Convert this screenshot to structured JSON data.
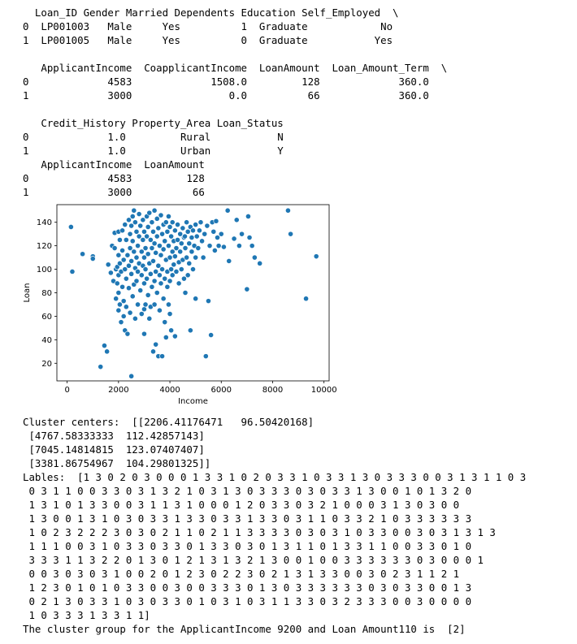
{
  "df_head": {
    "row1": "  Loan_ID Gender Married Dependents Education Self_Employed  \\",
    "row2": "0  LP001003   Male     Yes          1  Graduate            No",
    "row3": "1  LP001005   Male     Yes          0  Graduate           Yes",
    "row4": "",
    "row5": "   ApplicantIncome  CoapplicantIncome  LoanAmount  Loan_Amount_Term  \\",
    "row6": "0             4583             1508.0         128             360.0",
    "row7": "1             3000                0.0          66             360.0",
    "row8": "",
    "row9": "   Credit_History Property_Area Loan_Status",
    "row10": "0             1.0         Rural           N",
    "row11": "1             1.0         Urban           Y"
  },
  "subset_head": {
    "row1": "   ApplicantIncome  LoanAmount",
    "row2": "0             4583         128",
    "row3": "1             3000          66"
  },
  "chart_data": {
    "type": "scatter",
    "xlabel": "Income",
    "ylabel": "Loan",
    "xlim": [
      -400,
      10200
    ],
    "ylim": [
      5,
      155
    ],
    "xticks": [
      0,
      2000,
      4000,
      6000,
      8000,
      10000
    ],
    "yticks": [
      20,
      40,
      60,
      80,
      100,
      120,
      140
    ],
    "grid": false,
    "point_color": "#1f77b4",
    "points": [
      [
        150,
        136
      ],
      [
        200,
        98
      ],
      [
        600,
        113
      ],
      [
        1000,
        111
      ],
      [
        1000,
        109
      ],
      [
        1300,
        17
      ],
      [
        1450,
        35
      ],
      [
        1550,
        30
      ],
      [
        1600,
        104
      ],
      [
        1700,
        97
      ],
      [
        1750,
        120
      ],
      [
        1800,
        90
      ],
      [
        1850,
        131
      ],
      [
        1850,
        118
      ],
      [
        1900,
        100
      ],
      [
        1900,
        75
      ],
      [
        1950,
        102
      ],
      [
        1950,
        88
      ],
      [
        2000,
        132
      ],
      [
        2000,
        112
      ],
      [
        2000,
        95
      ],
      [
        2000,
        80
      ],
      [
        2000,
        65
      ],
      [
        2050,
        125
      ],
      [
        2050,
        105
      ],
      [
        2050,
        70
      ],
      [
        2100,
        98
      ],
      [
        2100,
        55
      ],
      [
        2150,
        133
      ],
      [
        2150,
        116
      ],
      [
        2150,
        85
      ],
      [
        2200,
        108
      ],
      [
        2200,
        73
      ],
      [
        2200,
        60
      ],
      [
        2250,
        138
      ],
      [
        2250,
        100
      ],
      [
        2250,
        48
      ],
      [
        2300,
        125
      ],
      [
        2300,
        92
      ],
      [
        2300,
        68
      ],
      [
        2350,
        112
      ],
      [
        2350,
        45
      ],
      [
        2400,
        142
      ],
      [
        2400,
        103
      ],
      [
        2400,
        84
      ],
      [
        2450,
        130
      ],
      [
        2450,
        118
      ],
      [
        2450,
        63
      ],
      [
        2500,
        9
      ],
      [
        2500,
        137
      ],
      [
        2500,
        107
      ],
      [
        2500,
        96
      ],
      [
        2550,
        145
      ],
      [
        2550,
        124
      ],
      [
        2550,
        77
      ],
      [
        2600,
        150
      ],
      [
        2600,
        115
      ],
      [
        2600,
        87
      ],
      [
        2650,
        140
      ],
      [
        2650,
        101
      ],
      [
        2650,
        58
      ],
      [
        2700,
        132
      ],
      [
        2700,
        110
      ],
      [
        2700,
        90
      ],
      [
        2750,
        120
      ],
      [
        2750,
        98
      ],
      [
        2750,
        70
      ],
      [
        2800,
        147
      ],
      [
        2800,
        128
      ],
      [
        2800,
        105
      ],
      [
        2850,
        137
      ],
      [
        2850,
        82
      ],
      [
        2900,
        115
      ],
      [
        2900,
        95
      ],
      [
        2900,
        62
      ],
      [
        2950,
        142
      ],
      [
        2950,
        125
      ],
      [
        2950,
        103
      ],
      [
        3000,
        132
      ],
      [
        3000,
        110
      ],
      [
        3000,
        88
      ],
      [
        3000,
        66
      ],
      [
        3000,
        45
      ],
      [
        3050,
        118
      ],
      [
        3050,
        100
      ],
      [
        3050,
        70
      ],
      [
        3100,
        145
      ],
      [
        3100,
        128
      ],
      [
        3100,
        92
      ],
      [
        3150,
        136
      ],
      [
        3150,
        113
      ],
      [
        3150,
        78
      ],
      [
        3200,
        148
      ],
      [
        3200,
        105
      ],
      [
        3200,
        58
      ],
      [
        3250,
        125
      ],
      [
        3250,
        96
      ],
      [
        3250,
        68
      ],
      [
        3300,
        140
      ],
      [
        3300,
        118
      ],
      [
        3300,
        85
      ],
      [
        3350,
        30
      ],
      [
        3350,
        132
      ],
      [
        3350,
        107
      ],
      [
        3400,
        150
      ],
      [
        3400,
        122
      ],
      [
        3400,
        90
      ],
      [
        3400,
        70
      ],
      [
        3450,
        36
      ],
      [
        3450,
        114
      ],
      [
        3450,
        98
      ],
      [
        3500,
        143
      ],
      [
        3500,
        128
      ],
      [
        3500,
        80
      ],
      [
        3550,
        26
      ],
      [
        3550,
        135
      ],
      [
        3550,
        103
      ],
      [
        3600,
        120
      ],
      [
        3600,
        95
      ],
      [
        3600,
        65
      ],
      [
        3650,
        146
      ],
      [
        3650,
        112
      ],
      [
        3650,
        88
      ],
      [
        3700,
        26
      ],
      [
        3700,
        130
      ],
      [
        3700,
        100
      ],
      [
        3750,
        138
      ],
      [
        3750,
        117
      ],
      [
        3750,
        75
      ],
      [
        3800,
        124
      ],
      [
        3800,
        92
      ],
      [
        3800,
        55
      ],
      [
        3850,
        140
      ],
      [
        3850,
        108
      ],
      [
        3850,
        42
      ],
      [
        3900,
        132
      ],
      [
        3900,
        98
      ],
      [
        3900,
        85
      ],
      [
        3950,
        145
      ],
      [
        3950,
        120
      ],
      [
        3950,
        70
      ],
      [
        4000,
        136
      ],
      [
        4000,
        110
      ],
      [
        4000,
        90
      ],
      [
        4000,
        62
      ],
      [
        4050,
        128
      ],
      [
        4050,
        100
      ],
      [
        4050,
        48
      ],
      [
        4100,
        140
      ],
      [
        4100,
        115
      ],
      [
        4100,
        95
      ],
      [
        4150,
        124
      ],
      [
        4150,
        104
      ],
      [
        4200,
        43
      ],
      [
        4200,
        133
      ],
      [
        4200,
        111
      ],
      [
        4250,
        118
      ],
      [
        4250,
        98
      ],
      [
        4300,
        138
      ],
      [
        4300,
        125
      ],
      [
        4350,
        106
      ],
      [
        4350,
        88
      ],
      [
        4400,
        130
      ],
      [
        4400,
        115
      ],
      [
        4450,
        122
      ],
      [
        4450,
        100
      ],
      [
        4500,
        135
      ],
      [
        4500,
        108
      ],
      [
        4550,
        127
      ],
      [
        4550,
        92
      ],
      [
        4583,
        128
      ],
      [
        4600,
        118
      ],
      [
        4600,
        80
      ],
      [
        4650,
        140
      ],
      [
        4650,
        110
      ],
      [
        4700,
        132
      ],
      [
        4700,
        95
      ],
      [
        4750,
        122
      ],
      [
        4750,
        105
      ],
      [
        4800,
        136
      ],
      [
        4800,
        48
      ],
      [
        4850,
        127
      ],
      [
        4850,
        115
      ],
      [
        4900,
        133
      ],
      [
        4900,
        100
      ],
      [
        4950,
        120
      ],
      [
        5000,
        138
      ],
      [
        5000,
        110
      ],
      [
        5000,
        75
      ],
      [
        5050,
        128
      ],
      [
        5100,
        118
      ],
      [
        5150,
        133
      ],
      [
        5200,
        140
      ],
      [
        5250,
        124
      ],
      [
        5300,
        110
      ],
      [
        5350,
        130
      ],
      [
        5400,
        26
      ],
      [
        5450,
        137
      ],
      [
        5500,
        73
      ],
      [
        5550,
        120
      ],
      [
        5600,
        44
      ],
      [
        5650,
        140
      ],
      [
        5700,
        132
      ],
      [
        5750,
        116
      ],
      [
        5800,
        141
      ],
      [
        5850,
        127
      ],
      [
        5900,
        120
      ],
      [
        6000,
        130
      ],
      [
        6100,
        119
      ],
      [
        6250,
        150
      ],
      [
        6300,
        107
      ],
      [
        6500,
        126
      ],
      [
        6600,
        142
      ],
      [
        6700,
        120
      ],
      [
        6800,
        130
      ],
      [
        7000,
        83
      ],
      [
        7050,
        145
      ],
      [
        7100,
        127
      ],
      [
        7200,
        120
      ],
      [
        7300,
        110
      ],
      [
        7500,
        105
      ],
      [
        8600,
        150
      ],
      [
        8700,
        130
      ],
      [
        9300,
        75
      ],
      [
        9700,
        111
      ]
    ]
  },
  "cluster_output": {
    "centers_line1": "Cluster centers:  [[2206.41176471   96.50420168]",
    "centers_line2": " [4767.58333333  112.42857143]",
    "centers_line3": " [7045.14814815  123.07407407]",
    "centers_line4": " [3381.86754967  104.29801325]]",
    "labels_line1": "Lables:  [1 3 0 2 0 3 0 0 0 1 3 3 1 0 2 0 3 3 1 0 3 3 1 3 0 3 3 3 0 0 3 1 3 1 1 0 3",
    "labels_line2": " 0 3 1 1 0 0 3 3 0 3 1 3 2 1 0 3 1 3 0 3 3 3 0 3 0 3 3 1 3 0 0 1 0 1 3 2 0",
    "labels_line3": " 1 3 1 0 1 3 3 0 0 3 1 1 3 1 0 0 0 1 2 0 3 3 0 3 2 1 0 0 0 3 1 3 0 3 0 0",
    "labels_line4": " 1 3 0 0 1 3 1 0 3 0 3 3 1 3 3 0 3 3 1 3 3 0 3 1 1 0 3 3 2 1 0 3 3 3 3 3 3",
    "labels_line5": " 1 0 2 3 2 2 2 3 0 3 0 2 1 1 0 2 1 1 3 3 3 3 0 3 0 3 1 0 3 3 0 0 3 0 3 1 3 1 3",
    "labels_line6": " 1 1 1 0 0 3 1 0 3 3 0 3 3 0 1 3 3 0 3 0 1 3 1 1 0 1 3 3 1 1 0 0 3 3 0 1 0",
    "labels_line7": " 3 3 3 1 1 3 2 2 0 1 3 0 1 2 1 3 1 3 2 1 3 0 0 1 0 0 3 3 3 3 3 3 0 3 0 0 0 1",
    "labels_line8": " 0 0 3 0 3 0 3 1 0 0 2 0 1 2 3 0 2 2 3 0 2 1 3 1 3 3 0 0 3 0 2 3 1 1 2 1",
    "labels_line9": " 1 2 3 0 1 0 1 0 3 3 0 0 3 0 0 3 3 3 0 1 3 0 3 3 3 3 3 3 0 3 0 3 3 0 0 1 3",
    "labels_line10": " 0 2 1 3 0 3 3 1 0 3 0 3 3 0 1 0 3 1 0 3 1 1 3 3 0 3 2 3 3 3 0 0 3 0 0 0 0",
    "labels_line11": " 1 0 3 3 3 1 3 3 1 1]",
    "result_line": "The cluster group for the ApplicantIncome 9200 and Loan Amount110 is  [2]"
  }
}
